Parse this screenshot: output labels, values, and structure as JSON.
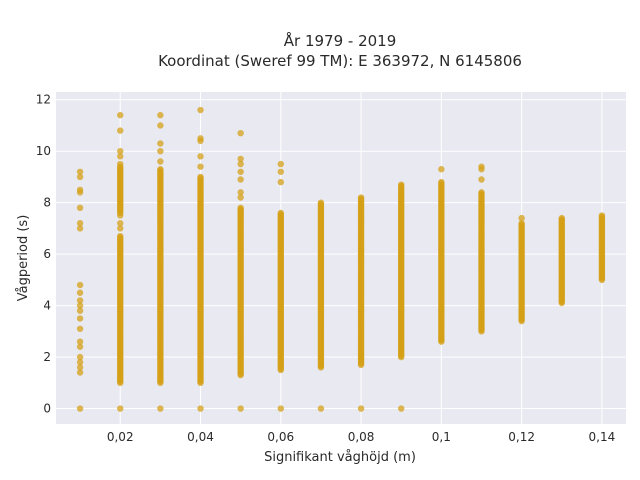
{
  "chart_data": {
    "type": "scatter",
    "title": "År 1979 - 2019",
    "subtitle": "Koordinat (Sweref 99 TM): E 363972, N 6145806",
    "xlabel": "Signifikant våghöjd (m)",
    "ylabel": "Vågperiod (s)",
    "xlim": [
      0.004,
      0.146
    ],
    "ylim": [
      -0.6,
      12.3
    ],
    "xticks": [
      0.02,
      0.04,
      0.06,
      0.08,
      0.1,
      0.12,
      0.14
    ],
    "xtick_labels": [
      "0,02",
      "0,04",
      "0,06",
      "0,08",
      "0,1",
      "0,12",
      "0,14"
    ],
    "yticks": [
      0,
      2,
      4,
      6,
      8,
      10,
      12
    ],
    "ytick_labels": [
      "0",
      "2",
      "4",
      "6",
      "8",
      "10",
      "12"
    ],
    "grid": true,
    "background": "#e9e9f1",
    "marker_color": "#d4a017",
    "series": [
      {
        "columns": [
          {
            "x": 0.01,
            "y_points": [
              0,
              1.4,
              1.6,
              1.8,
              2.0,
              2.4,
              2.6,
              3.1,
              3.5,
              3.8,
              4.0,
              4.2,
              4.5,
              4.8,
              7.0,
              7.2,
              7.8,
              8.4,
              8.5,
              9.0,
              9.2
            ],
            "y_ranges": []
          },
          {
            "x": 0.02,
            "y_points": [
              0,
              7.0,
              7.2,
              7.5,
              9.5,
              9.8,
              10.0,
              10.8,
              11.4
            ],
            "y_ranges": [
              [
                1.0,
                6.7
              ],
              [
                7.6,
                9.4
              ]
            ]
          },
          {
            "x": 0.03,
            "y_points": [
              0,
              9.6,
              10.0,
              10.3,
              11.0,
              11.4
            ],
            "y_ranges": [
              [
                1.0,
                9.3
              ]
            ]
          },
          {
            "x": 0.04,
            "y_points": [
              0,
              9.4,
              9.8,
              10.4,
              10.5,
              11.6
            ],
            "y_ranges": [
              [
                1.0,
                9.0
              ]
            ]
          },
          {
            "x": 0.05,
            "y_points": [
              0,
              8.2,
              8.4,
              8.9,
              9.2,
              9.5,
              9.7,
              10.7
            ],
            "y_ranges": [
              [
                1.3,
                7.8
              ]
            ]
          },
          {
            "x": 0.06,
            "y_points": [
              0,
              8.8,
              9.2,
              9.5
            ],
            "y_ranges": [
              [
                1.5,
                7.6
              ]
            ]
          },
          {
            "x": 0.07,
            "y_points": [
              0
            ],
            "y_ranges": [
              [
                1.6,
                8.0
              ]
            ]
          },
          {
            "x": 0.08,
            "y_points": [
              0
            ],
            "y_ranges": [
              [
                1.7,
                8.2
              ]
            ]
          },
          {
            "x": 0.09,
            "y_points": [
              0
            ],
            "y_ranges": [
              [
                2.0,
                8.7
              ]
            ]
          },
          {
            "x": 0.1,
            "y_points": [
              9.3
            ],
            "y_ranges": [
              [
                2.6,
                8.8
              ]
            ]
          },
          {
            "x": 0.11,
            "y_points": [
              8.9,
              9.3,
              9.4
            ],
            "y_ranges": [
              [
                3.0,
                8.4
              ]
            ]
          },
          {
            "x": 0.12,
            "y_points": [
              7.4
            ],
            "y_ranges": [
              [
                3.4,
                7.2
              ]
            ]
          },
          {
            "x": 0.13,
            "y_points": [],
            "y_ranges": [
              [
                4.1,
                7.4
              ]
            ]
          },
          {
            "x": 0.14,
            "y_points": [],
            "y_ranges": [
              [
                5.0,
                7.5
              ]
            ]
          }
        ]
      }
    ]
  }
}
